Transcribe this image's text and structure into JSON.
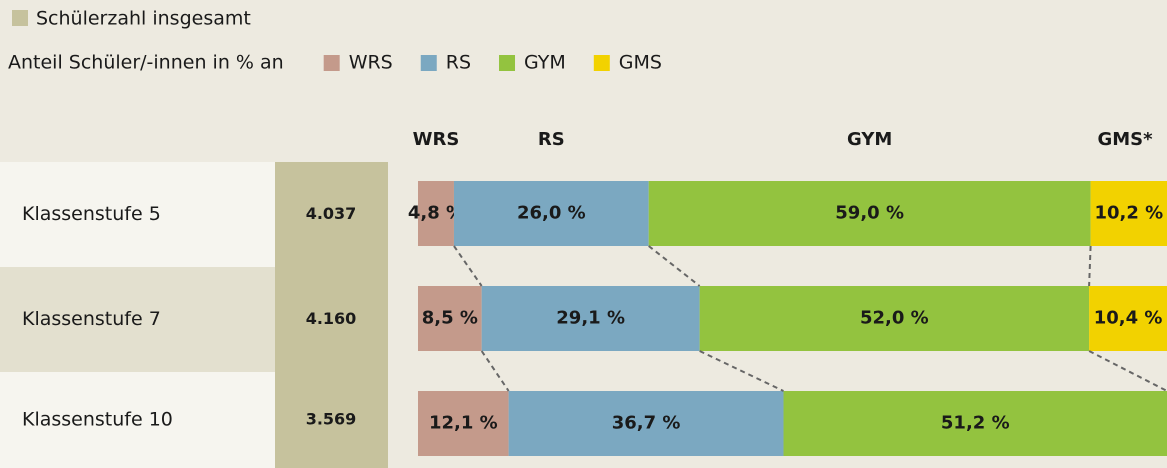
{
  "chart_data": {
    "type": "stacked_bar_100",
    "orientation": "horizontal",
    "categories": [
      "Klassenstufe 5",
      "Klassenstufe 7",
      "Klassenstufe 10"
    ],
    "totals": {
      "name": "Schülerzahl insgesamt",
      "color": "#c6c29d",
      "values": [
        4037,
        4160,
        3569
      ],
      "value_labels": [
        "4.037",
        "4.160",
        "3.569"
      ]
    },
    "share_legend_label": "Anteil Schüler/-innen in % an",
    "column_headers": [
      "WRS",
      "RS",
      "GYM",
      "GMS*"
    ],
    "xlim": [
      0,
      100
    ],
    "series": [
      {
        "name": "WRS",
        "color": "#c49a8b",
        "values": [
          4.8,
          8.5,
          12.1
        ],
        "value_labels": [
          "4,8 %",
          "8,5 %",
          "12,1 %"
        ]
      },
      {
        "name": "RS",
        "color": "#7ba8c1",
        "values": [
          26.0,
          29.1,
          36.7
        ],
        "value_labels": [
          "26,0 %",
          "29,1 %",
          "36,7 %"
        ]
      },
      {
        "name": "GYM",
        "color": "#93c33f",
        "values": [
          59.0,
          52.0,
          51.2
        ],
        "value_labels": [
          "59,0 %",
          "52,0 %",
          "51,2 %"
        ]
      },
      {
        "name": "GMS",
        "color": "#f2d200",
        "values": [
          10.2,
          10.4,
          null
        ],
        "value_labels": [
          "10,2 %",
          "10,4 %",
          null
        ]
      }
    ]
  }
}
